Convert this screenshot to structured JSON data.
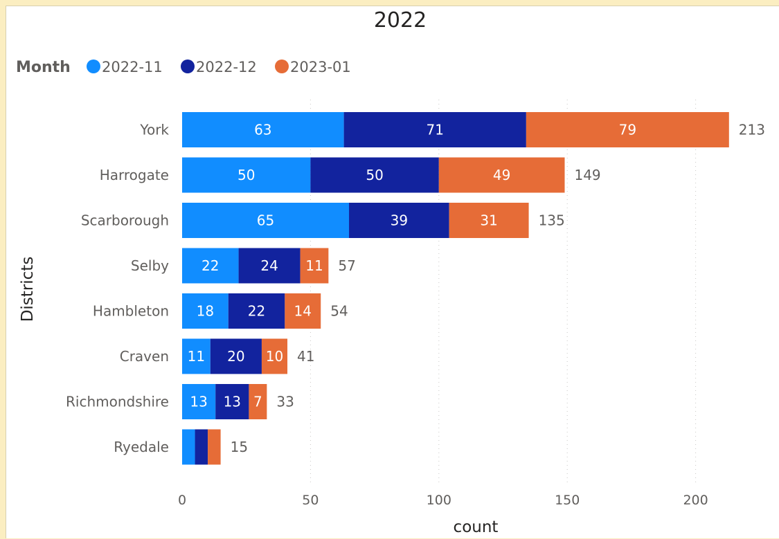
{
  "chart_data": {
    "type": "bar",
    "orientation": "horizontal",
    "stacked": true,
    "title": "2022",
    "legend_title": "Month",
    "legend_position": "top-left",
    "xlabel": "count",
    "ylabel": "Districts",
    "xlim": [
      0,
      225
    ],
    "xticks": [
      "0",
      "50",
      "100",
      "150",
      "200"
    ],
    "grid": true,
    "categories": [
      "York",
      "Harrogate",
      "Scarborough",
      "Selby",
      "Hambleton",
      "Craven",
      "Richmondshire",
      "Ryedale"
    ],
    "series": [
      {
        "name": "2022-11",
        "color": "#118dff",
        "values": [
          63,
          50,
          65,
          22,
          18,
          11,
          13,
          5
        ]
      },
      {
        "name": "2022-12",
        "color": "#12239e",
        "values": [
          71,
          50,
          39,
          24,
          22,
          20,
          13,
          5
        ]
      },
      {
        "name": "2023-01",
        "color": "#e66c37",
        "values": [
          79,
          49,
          31,
          11,
          14,
          10,
          7,
          5
        ]
      }
    ],
    "labels_shown": [
      [
        "63",
        "71",
        "79"
      ],
      [
        "50",
        "50",
        "49"
      ],
      [
        "65",
        "39",
        "31"
      ],
      [
        "22",
        "24",
        "11"
      ],
      [
        "18",
        "22",
        "14"
      ],
      [
        "11",
        "20",
        "10"
      ],
      [
        "13",
        "13",
        "7"
      ],
      [
        "",
        "",
        ""
      ]
    ],
    "totals": [
      213,
      149,
      135,
      57,
      54,
      41,
      33,
      15
    ]
  }
}
